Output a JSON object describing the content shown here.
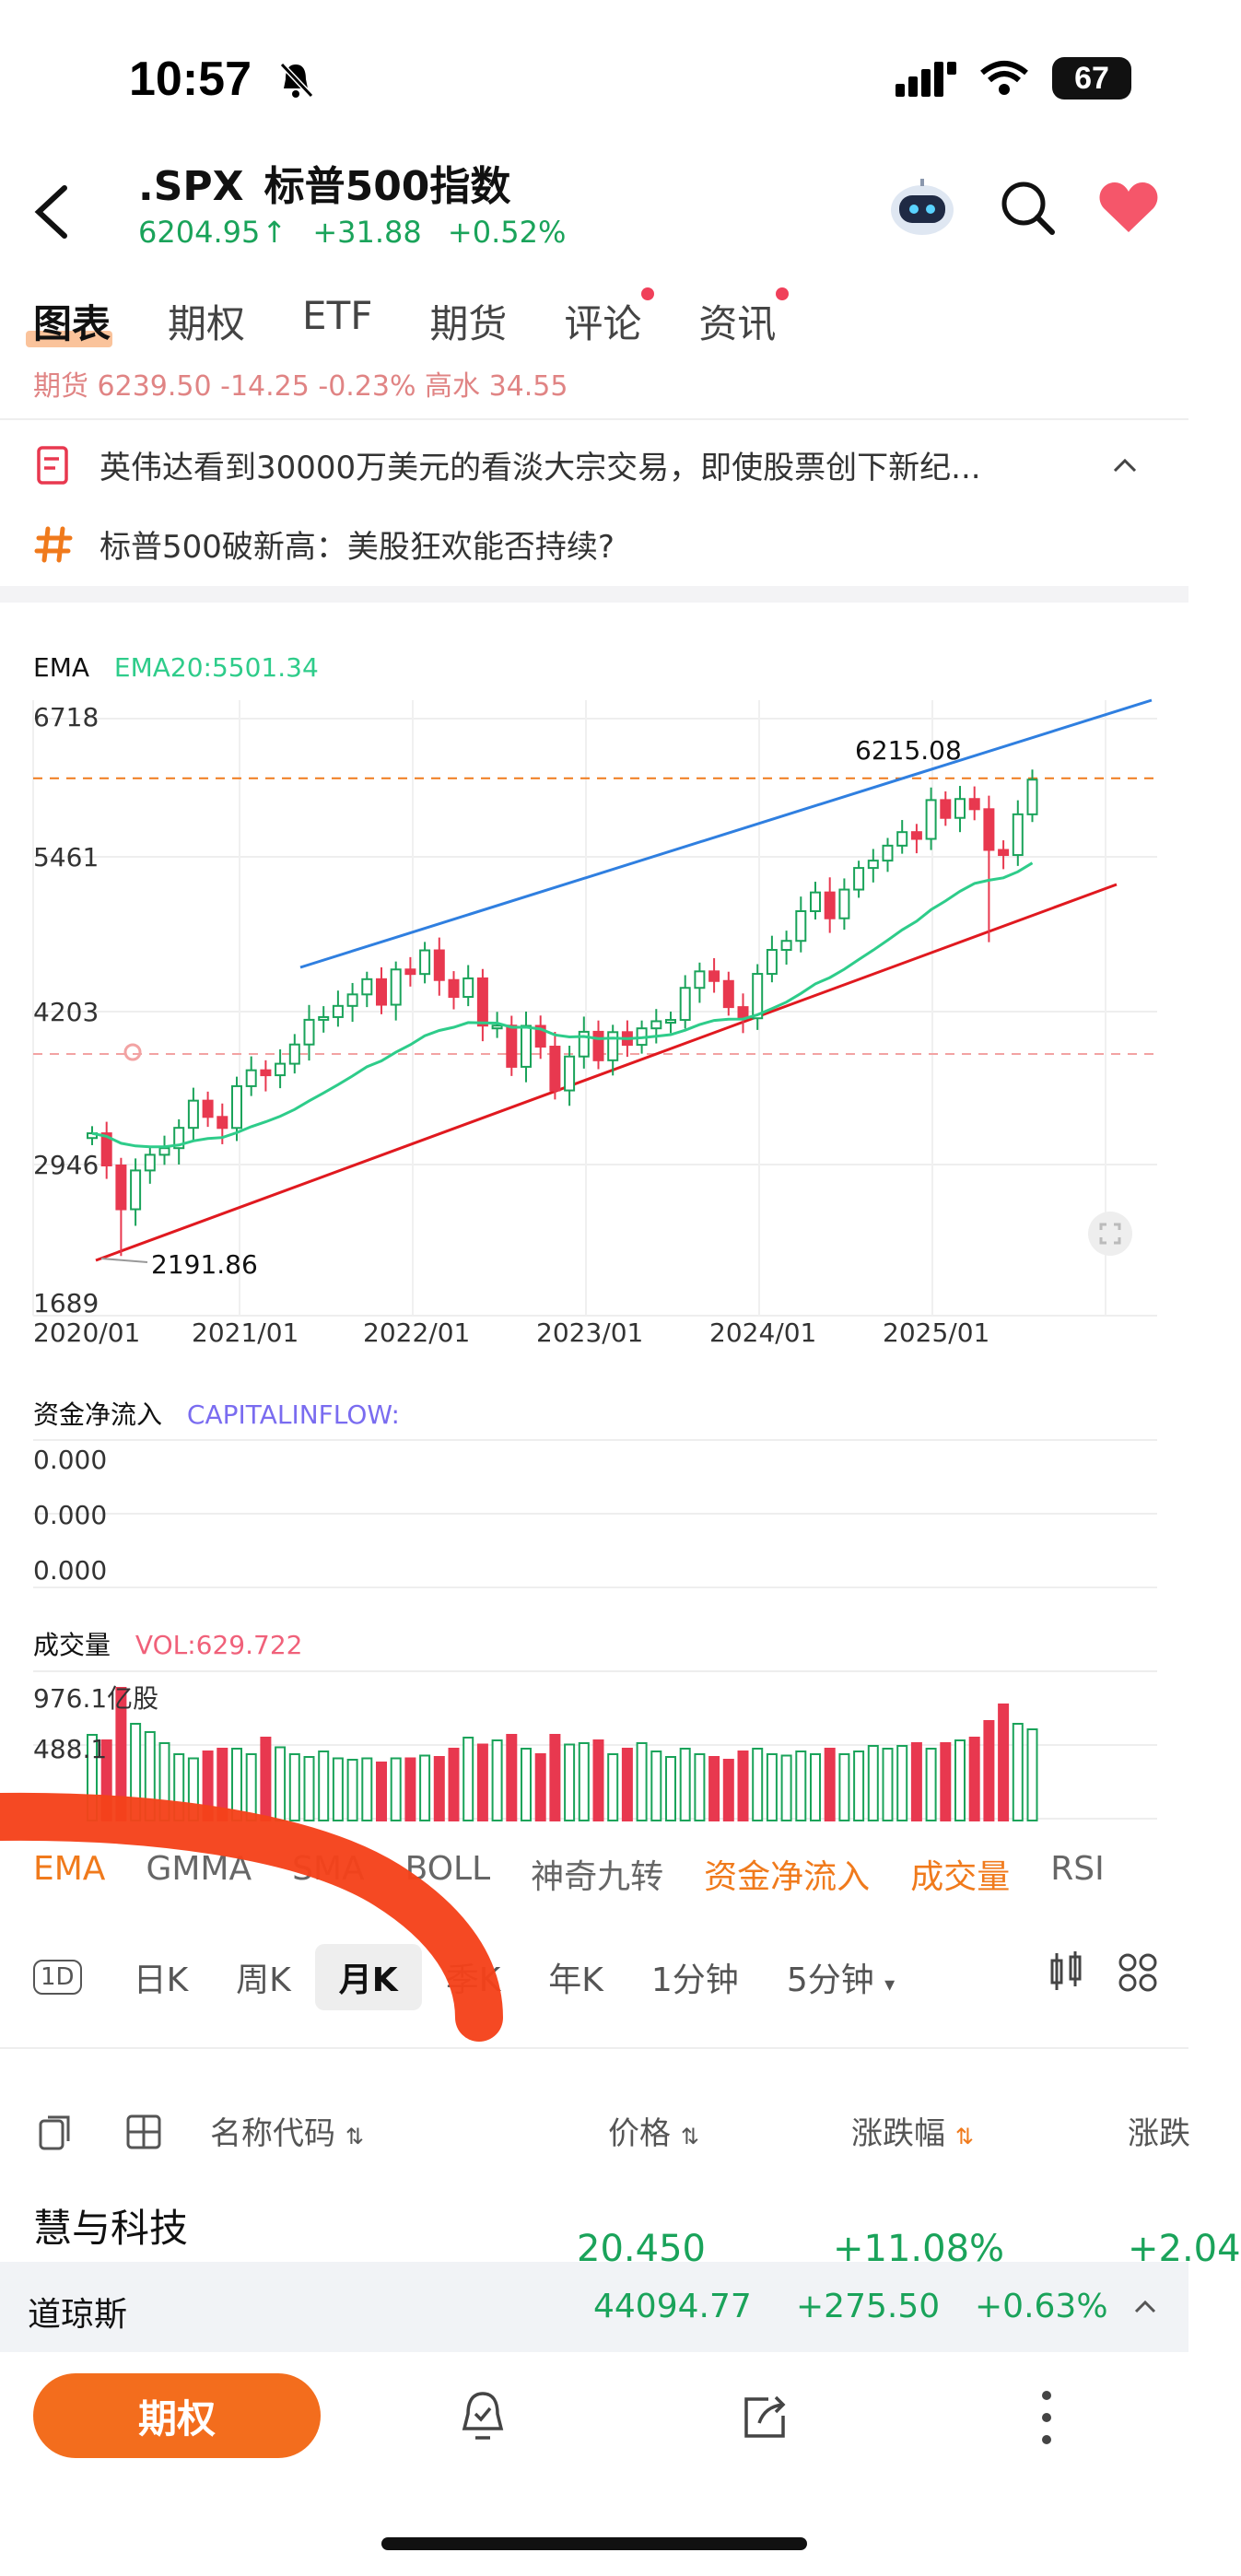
{
  "status": {
    "time": "10:57",
    "battery": "67"
  },
  "header": {
    "symbol": ".SPX",
    "name": "标普500指数",
    "price": "6204.95",
    "change": "+31.88",
    "change_pct": "+0.52%"
  },
  "tabs": [
    {
      "label": "图表"
    },
    {
      "label": "期权"
    },
    {
      "label": "ETF"
    },
    {
      "label": "期货"
    },
    {
      "label": "评论"
    },
    {
      "label": "资讯"
    }
  ],
  "cut_line": "期货  6239.50  -14.25  -0.23%  高水  34.55",
  "news": [
    {
      "text": "英伟达看到30000万美元的看淡大宗交易，即使股票创下新纪..."
    },
    {
      "text": "标普500破新高：美股狂欢能否持续?"
    }
  ],
  "chart": {
    "indicator_label": "EMA",
    "ema_label": "EMA20:5501.34",
    "y_ticks": [
      "6718",
      "5461",
      "4203",
      "2946",
      "1689"
    ],
    "high_label": "6215.08",
    "low_label": "2191.86",
    "x_ticks": [
      "2020/01",
      "2021/01",
      "2022/01",
      "2023/01",
      "2024/01",
      "2025/01"
    ]
  },
  "chart_data": {
    "type": "candlestick",
    "interval": "monthly",
    "ylim": [
      1689,
      6718
    ],
    "x_range": [
      "2020/01",
      "2025/06"
    ],
    "reference_lines": {
      "high": 6215.08,
      "low": 2191.86
    },
    "closes": [
      3225,
      2954,
      2585,
      2912,
      3044,
      3100,
      3271,
      3500,
      3363,
      3270,
      3622,
      3756,
      3714,
      3811,
      3973,
      4181,
      4204,
      4298,
      4395,
      4523,
      4308,
      4605,
      4567,
      4766,
      4516,
      4374,
      4530,
      4132,
      4132,
      3785,
      4130,
      3955,
      3586,
      3872,
      4080,
      3840,
      4077,
      3970,
      4109,
      4169,
      4180,
      4450,
      4589,
      4508,
      4288,
      4194,
      4568,
      4770,
      4846,
      5096,
      5254,
      5036,
      5278,
      5460,
      5522,
      5648,
      5762,
      5705,
      6032,
      5882,
      6041,
      5955,
      5612,
      5569,
      5912,
      6204
    ],
    "ema20": 5501.34
  },
  "capital": {
    "label": "资金净流入",
    "sub": "CAPITALINFLOW:",
    "ticks": [
      "0.000",
      "0.000",
      "0.000"
    ]
  },
  "volume": {
    "label": "成交量",
    "sub": "VOL:629.722",
    "ticks": [
      "976.1亿股",
      "488.1"
    ],
    "bars": [
      0.62,
      0.58,
      0.96,
      0.7,
      0.64,
      0.56,
      0.48,
      0.45,
      0.5,
      0.52,
      0.52,
      0.48,
      0.6,
      0.53,
      0.48,
      0.46,
      0.5,
      0.45,
      0.44,
      0.45,
      0.42,
      0.45,
      0.45,
      0.47,
      0.46,
      0.52,
      0.6,
      0.55,
      0.58,
      0.62,
      0.52,
      0.48,
      0.62,
      0.55,
      0.56,
      0.58,
      0.48,
      0.52,
      0.56,
      0.5,
      0.46,
      0.52,
      0.48,
      0.46,
      0.44,
      0.5,
      0.52,
      0.48,
      0.47,
      0.5,
      0.48,
      0.52,
      0.48,
      0.5,
      0.54,
      0.52,
      0.54,
      0.56,
      0.52,
      0.56,
      0.58,
      0.6,
      0.72,
      0.84,
      0.7,
      0.66
    ]
  },
  "indicators": [
    {
      "label": "EMA",
      "on": true
    },
    {
      "label": "GMMA",
      "on": false
    },
    {
      "label": "SMA",
      "on": false
    },
    {
      "label": "BOLL",
      "on": false
    },
    {
      "label": "神奇九转",
      "on": false
    },
    {
      "label": "资金净流入",
      "on": true
    },
    {
      "label": "成交量",
      "on": true
    },
    {
      "label": "RSI",
      "on": false
    }
  ],
  "periods": [
    {
      "label": "1D"
    },
    {
      "label": "日K"
    },
    {
      "label": "周K"
    },
    {
      "label": "月K",
      "selected": true
    },
    {
      "label": "季K"
    },
    {
      "label": "年K"
    },
    {
      "label": "1分钟"
    },
    {
      "label": "5分钟"
    }
  ],
  "table": {
    "col_name": "名称代码",
    "col_price": "价格",
    "col_change_pct": "涨跌幅",
    "col_change": "涨跌",
    "row_name": "慧与科技",
    "row_price": "20.450",
    "row_pct": "+11.08%",
    "row_chg": "+2.04"
  },
  "ticker": {
    "name": "道琼斯",
    "price": "44094.77",
    "change": "+275.50",
    "change_pct": "+0.63%"
  },
  "bottom": {
    "options_label": "期权"
  },
  "colors": {
    "up": "#1aa35a",
    "down": "#e8384f",
    "accent": "#f36d1d",
    "ema": "#2ecc8a",
    "channel_top": "#2f7fe0",
    "channel_bottom": "#e0191f"
  }
}
